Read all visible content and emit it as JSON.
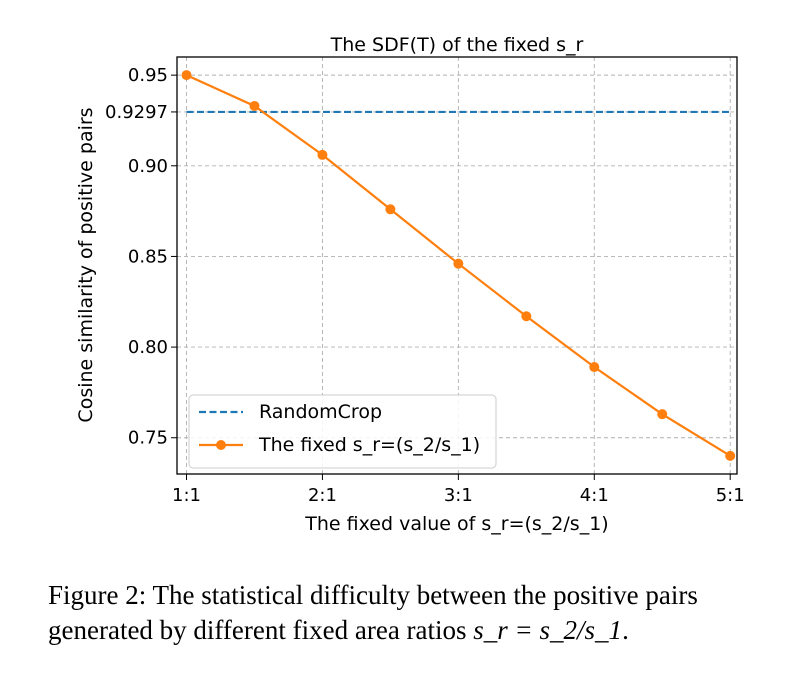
{
  "chart_data": {
    "type": "line",
    "title": "The SDF(T) of the fixed s_r",
    "xlabel": "The fixed value of s_r=(s_2/s_1)",
    "ylabel": "Cosine similarity of positive pairs",
    "x_tick_values": [
      1,
      2,
      3,
      4,
      5
    ],
    "x_tick_labels": [
      "1:1",
      "2:1",
      "3:1",
      "4:1",
      "5:1"
    ],
    "y_tick_values": [
      0.75,
      0.8,
      0.85,
      0.9,
      0.9297,
      0.95
    ],
    "y_tick_labels": [
      "0.75",
      "0.80",
      "0.85",
      "0.90",
      "0.9297",
      "0.95"
    ],
    "xlim": [
      0.93,
      5.05
    ],
    "ylim": [
      0.73,
      0.96
    ],
    "grid": true,
    "legend_position": "lower-left",
    "series": [
      {
        "name": "RandomCrop",
        "style": "dashed",
        "color": "#1f77b4",
        "x": [
          1,
          5
        ],
        "y": [
          0.9297,
          0.9297
        ]
      },
      {
        "name": "The fixed s_r=(s_2/s_1)",
        "style": "solid-marker",
        "color": "#ff7f0e",
        "x": [
          1,
          1.5,
          2,
          2.5,
          3,
          3.5,
          4,
          4.5,
          5
        ],
        "y": [
          0.95,
          0.933,
          0.906,
          0.876,
          0.846,
          0.817,
          0.789,
          0.763,
          0.74
        ]
      }
    ]
  },
  "caption": {
    "prefix": "Figure 2: The statistical difficulty between the positive pairs generated by different fixed area ratios ",
    "math": "s_r = s_2/s_1",
    "suffix": "."
  }
}
